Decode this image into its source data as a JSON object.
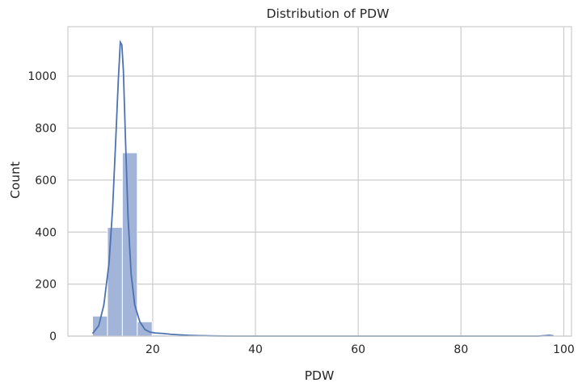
{
  "chart_data": {
    "type": "bar",
    "title": "Distribution of PDW",
    "xlabel": "PDW",
    "ylabel": "Count",
    "xlim": [
      3.5,
      101.5
    ],
    "ylim": [
      0,
      1190
    ],
    "xticks": [
      20,
      40,
      60,
      80,
      100
    ],
    "yticks": [
      0,
      200,
      400,
      600,
      800,
      1000
    ],
    "grid": true,
    "colors": {
      "bars": "#a2b4d8",
      "kde": "#4c72b0",
      "grid": "#cccccc"
    },
    "bins": [
      {
        "x0": 8.3,
        "x1": 11.2,
        "count": 77
      },
      {
        "x0": 11.2,
        "x1": 14.1,
        "count": 418
      },
      {
        "x0": 14.1,
        "x1": 17.0,
        "count": 705
      },
      {
        "x0": 17.0,
        "x1": 19.9,
        "count": 55
      },
      {
        "x0": 19.9,
        "x1": 22.8,
        "count": 4
      },
      {
        "x0": 22.8,
        "x1": 25.7,
        "count": 2
      },
      {
        "x0": 25.7,
        "x1": 28.6,
        "count": 1
      },
      {
        "x0": 28.6,
        "x1": 31.5,
        "count": 1
      },
      {
        "x0": 31.5,
        "x1": 34.4,
        "count": 0
      },
      {
        "x0": 34.4,
        "x1": 37.3,
        "count": 0
      },
      {
        "x0": 37.3,
        "x1": 40.2,
        "count": 0
      },
      {
        "x0": 40.2,
        "x1": 43.1,
        "count": 0
      },
      {
        "x0": 43.1,
        "x1": 46.0,
        "count": 0
      },
      {
        "x0": 46.0,
        "x1": 48.9,
        "count": 0
      },
      {
        "x0": 48.9,
        "x1": 51.8,
        "count": 0
      },
      {
        "x0": 51.8,
        "x1": 54.7,
        "count": 0
      },
      {
        "x0": 54.7,
        "x1": 57.6,
        "count": 0
      },
      {
        "x0": 57.6,
        "x1": 60.5,
        "count": 0
      },
      {
        "x0": 60.5,
        "x1": 63.4,
        "count": 0
      },
      {
        "x0": 63.4,
        "x1": 66.3,
        "count": 0
      },
      {
        "x0": 66.3,
        "x1": 69.2,
        "count": 0
      },
      {
        "x0": 69.2,
        "x1": 72.1,
        "count": 0
      },
      {
        "x0": 72.1,
        "x1": 75.0,
        "count": 0
      },
      {
        "x0": 75.0,
        "x1": 77.9,
        "count": 0
      },
      {
        "x0": 77.9,
        "x1": 80.8,
        "count": 0
      },
      {
        "x0": 80.8,
        "x1": 83.7,
        "count": 0
      },
      {
        "x0": 83.7,
        "x1": 86.6,
        "count": 0
      },
      {
        "x0": 86.6,
        "x1": 89.5,
        "count": 0
      },
      {
        "x0": 89.5,
        "x1": 92.4,
        "count": 0
      },
      {
        "x0": 92.4,
        "x1": 95.3,
        "count": 0
      },
      {
        "x0": 95.3,
        "x1": 98.2,
        "count": 1
      }
    ],
    "kde": {
      "x": [
        8.3,
        9.5,
        10.5,
        11.5,
        12.2,
        12.8,
        13.3,
        13.7,
        14.0,
        14.3,
        14.7,
        15.2,
        15.8,
        16.5,
        17.5,
        18.5,
        19.5,
        20.5,
        22.0,
        23.5,
        25.0,
        27.0,
        29.0,
        31.0,
        35.0,
        40.0,
        50.0,
        60.0,
        70.0,
        80.0,
        90.0,
        95.0,
        96.5,
        97.2,
        98.0
      ],
      "y": [
        10,
        40,
        120,
        280,
        490,
        750,
        980,
        1130,
        1120,
        1020,
        760,
        460,
        240,
        120,
        55,
        25,
        15,
        12,
        10,
        7,
        5,
        3,
        2,
        1,
        0,
        0,
        0,
        0,
        0,
        0,
        0,
        0,
        2,
        3,
        1
      ]
    }
  }
}
